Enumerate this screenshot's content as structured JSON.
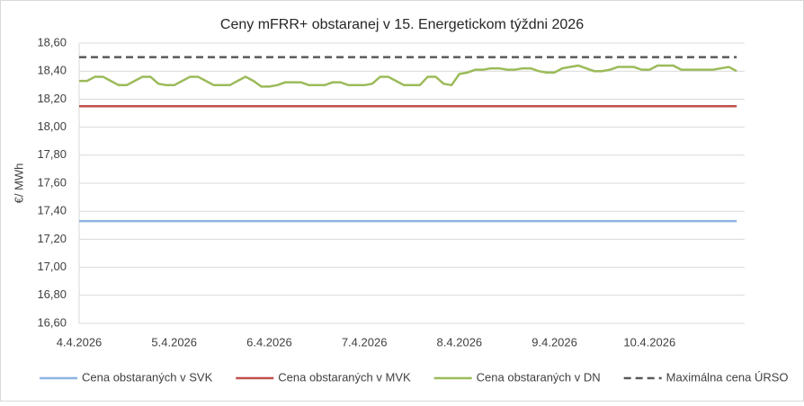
{
  "chart_data": {
    "type": "line",
    "title": "Ceny mFRR+ obstaranej v 15. Energetickom týždni 2026",
    "y_label": "€/ MWh",
    "categories": [
      "4.4.2026",
      null,
      null,
      null,
      null,
      null,
      null,
      null,
      null,
      null,
      null,
      null,
      "5.4.2026",
      null,
      null,
      null,
      null,
      null,
      null,
      null,
      null,
      null,
      null,
      null,
      "6.4.2026",
      null,
      null,
      null,
      null,
      null,
      null,
      null,
      null,
      null,
      null,
      null,
      "7.4.2026",
      null,
      null,
      null,
      null,
      null,
      null,
      null,
      null,
      null,
      null,
      null,
      "8.4.2026",
      null,
      null,
      null,
      null,
      null,
      null,
      null,
      null,
      null,
      null,
      null,
      "9.4.2026",
      null,
      null,
      null,
      null,
      null,
      null,
      null,
      null,
      null,
      null,
      null,
      "10.4.2026",
      null,
      null,
      null,
      null,
      null,
      null,
      null,
      null,
      null,
      null,
      null
    ],
    "ylim": [
      16.6,
      18.6
    ],
    "yticks": [
      {
        "value": 16.6,
        "label": "16,60"
      },
      {
        "value": 16.8,
        "label": "16,80"
      },
      {
        "value": 17.0,
        "label": "17,00"
      },
      {
        "value": 17.2,
        "label": "17,20"
      },
      {
        "value": 17.4,
        "label": "17,40"
      },
      {
        "value": 17.6,
        "label": "17,60"
      },
      {
        "value": 17.8,
        "label": "17,80"
      },
      {
        "value": 18.0,
        "label": "18,00"
      },
      {
        "value": 18.2,
        "label": "18,20"
      },
      {
        "value": 18.4,
        "label": "18,40"
      },
      {
        "value": 18.6,
        "label": "18,60"
      }
    ],
    "grid": true,
    "legend": "bottom",
    "series": [
      {
        "name": "Cena obstaraných v SVK",
        "color": "#8db4e2",
        "line_style": "solid",
        "values": [
          17.33,
          17.33,
          17.33,
          17.33,
          17.33,
          17.33,
          17.33,
          17.33,
          17.33,
          17.33,
          17.33,
          17.33,
          17.33,
          17.33,
          17.33,
          17.33,
          17.33,
          17.33,
          17.33,
          17.33,
          17.33,
          17.33,
          17.33,
          17.33,
          17.33,
          17.33,
          17.33,
          17.33,
          17.33,
          17.33,
          17.33,
          17.33,
          17.33,
          17.33,
          17.33,
          17.33,
          17.33,
          17.33,
          17.33,
          17.33,
          17.33,
          17.33,
          17.33,
          17.33,
          17.33,
          17.33,
          17.33,
          17.33,
          17.33,
          17.33,
          17.33,
          17.33,
          17.33,
          17.33,
          17.33,
          17.33,
          17.33,
          17.33,
          17.33,
          17.33,
          17.33,
          17.33,
          17.33,
          17.33,
          17.33,
          17.33,
          17.33,
          17.33,
          17.33,
          17.33,
          17.33,
          17.33,
          17.33,
          17.33,
          17.33,
          17.33,
          17.33,
          17.33,
          17.33,
          17.33,
          17.33,
          17.33,
          17.33,
          17.33
        ]
      },
      {
        "name": "Cena obstaraných v MVK",
        "color": "#c0504d",
        "line_style": "solid",
        "values": [
          18.15,
          18.15,
          18.15,
          18.15,
          18.15,
          18.15,
          18.15,
          18.15,
          18.15,
          18.15,
          18.15,
          18.15,
          18.15,
          18.15,
          18.15,
          18.15,
          18.15,
          18.15,
          18.15,
          18.15,
          18.15,
          18.15,
          18.15,
          18.15,
          18.15,
          18.15,
          18.15,
          18.15,
          18.15,
          18.15,
          18.15,
          18.15,
          18.15,
          18.15,
          18.15,
          18.15,
          18.15,
          18.15,
          18.15,
          18.15,
          18.15,
          18.15,
          18.15,
          18.15,
          18.15,
          18.15,
          18.15,
          18.15,
          18.15,
          18.15,
          18.15,
          18.15,
          18.15,
          18.15,
          18.15,
          18.15,
          18.15,
          18.15,
          18.15,
          18.15,
          18.15,
          18.15,
          18.15,
          18.15,
          18.15,
          18.15,
          18.15,
          18.15,
          18.15,
          18.15,
          18.15,
          18.15,
          18.15,
          18.15,
          18.15,
          18.15,
          18.15,
          18.15,
          18.15,
          18.15,
          18.15,
          18.15,
          18.15,
          18.15
        ]
      },
      {
        "name": "Cena obstaraných v DN",
        "color": "#9bbb59",
        "line_style": "solid",
        "values": [
          18.33,
          18.33,
          18.36,
          18.36,
          18.33,
          18.3,
          18.3,
          18.33,
          18.36,
          18.36,
          18.31,
          18.3,
          18.3,
          18.33,
          18.36,
          18.36,
          18.33,
          18.3,
          18.3,
          18.3,
          18.33,
          18.36,
          18.33,
          18.29,
          18.29,
          18.3,
          18.32,
          18.32,
          18.32,
          18.3,
          18.3,
          18.3,
          18.32,
          18.32,
          18.3,
          18.3,
          18.3,
          18.31,
          18.36,
          18.36,
          18.33,
          18.3,
          18.3,
          18.3,
          18.36,
          18.36,
          18.31,
          18.3,
          18.38,
          18.39,
          18.41,
          18.41,
          18.42,
          18.42,
          18.41,
          18.41,
          18.42,
          18.42,
          18.4,
          18.39,
          18.39,
          18.42,
          18.43,
          18.44,
          18.42,
          18.4,
          18.4,
          18.41,
          18.43,
          18.43,
          18.43,
          18.41,
          18.41,
          18.44,
          18.44,
          18.44,
          18.41,
          18.41,
          18.41,
          18.41,
          18.41,
          18.42,
          18.43,
          18.4
        ]
      },
      {
        "name": "Maximálna cena ÚRSO",
        "color": "#595959",
        "line_style": "dashed",
        "values": [
          18.5,
          18.5,
          18.5,
          18.5,
          18.5,
          18.5,
          18.5,
          18.5,
          18.5,
          18.5,
          18.5,
          18.5,
          18.5,
          18.5,
          18.5,
          18.5,
          18.5,
          18.5,
          18.5,
          18.5,
          18.5,
          18.5,
          18.5,
          18.5,
          18.5,
          18.5,
          18.5,
          18.5,
          18.5,
          18.5,
          18.5,
          18.5,
          18.5,
          18.5,
          18.5,
          18.5,
          18.5,
          18.5,
          18.5,
          18.5,
          18.5,
          18.5,
          18.5,
          18.5,
          18.5,
          18.5,
          18.5,
          18.5,
          18.5,
          18.5,
          18.5,
          18.5,
          18.5,
          18.5,
          18.5,
          18.5,
          18.5,
          18.5,
          18.5,
          18.5,
          18.5,
          18.5,
          18.5,
          18.5,
          18.5,
          18.5,
          18.5,
          18.5,
          18.5,
          18.5,
          18.5,
          18.5,
          18.5,
          18.5,
          18.5,
          18.5,
          18.5,
          18.5,
          18.5,
          18.5,
          18.5,
          18.5,
          18.5,
          18.5
        ]
      }
    ]
  }
}
